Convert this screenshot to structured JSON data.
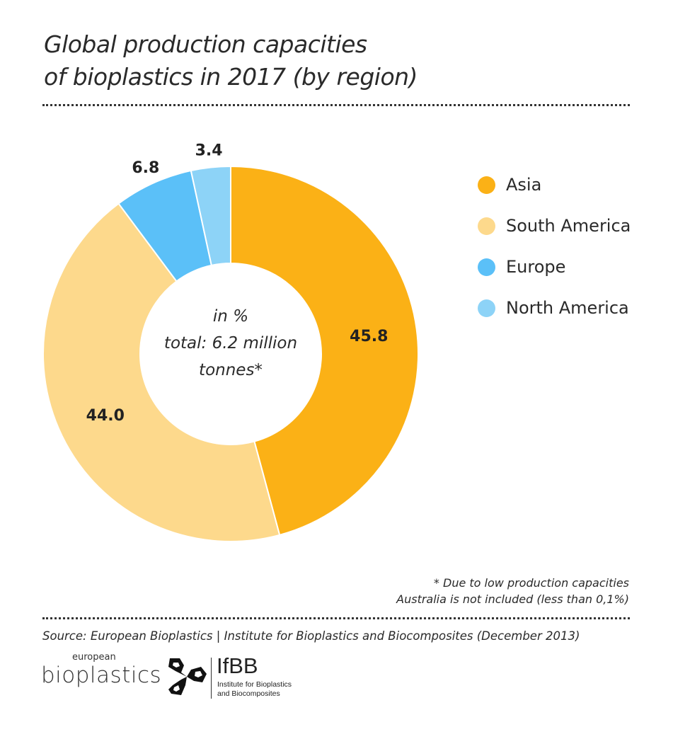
{
  "chart_data": {
    "type": "pie",
    "variant": "donut",
    "title": "Global production capacities of bioplastics in 2017 (by region)",
    "title_lines": [
      "Global production capacities",
      "of bioplastics in 2017 (by region)"
    ],
    "center_text": [
      "in %",
      "total: 6.2 million",
      "tonnes*"
    ],
    "categories": [
      "Asia",
      "South America",
      "Europe",
      "North America"
    ],
    "values": [
      45.8,
      44.0,
      6.8,
      3.4
    ],
    "data_labels": [
      "45.8",
      "44.0",
      "6.8",
      "3.4"
    ],
    "colors": [
      "#FBB116",
      "#FDD98C",
      "#5BC0F8",
      "#8DD3F7"
    ],
    "legend_position": "right",
    "footnote": [
      "* Due to low production capacities",
      "Australia is not included (less than 0,1%)"
    ],
    "source": "Source: European Bioplastics | Institute for Bioplastics and Biocomposites (December 2013)"
  },
  "logos": {
    "eb_small": "european",
    "eb_big": "bioplastics",
    "ifbb_title": "IfBB",
    "ifbb_sub": [
      "Institute for Bioplastics",
      "and Biocomposites"
    ]
  }
}
